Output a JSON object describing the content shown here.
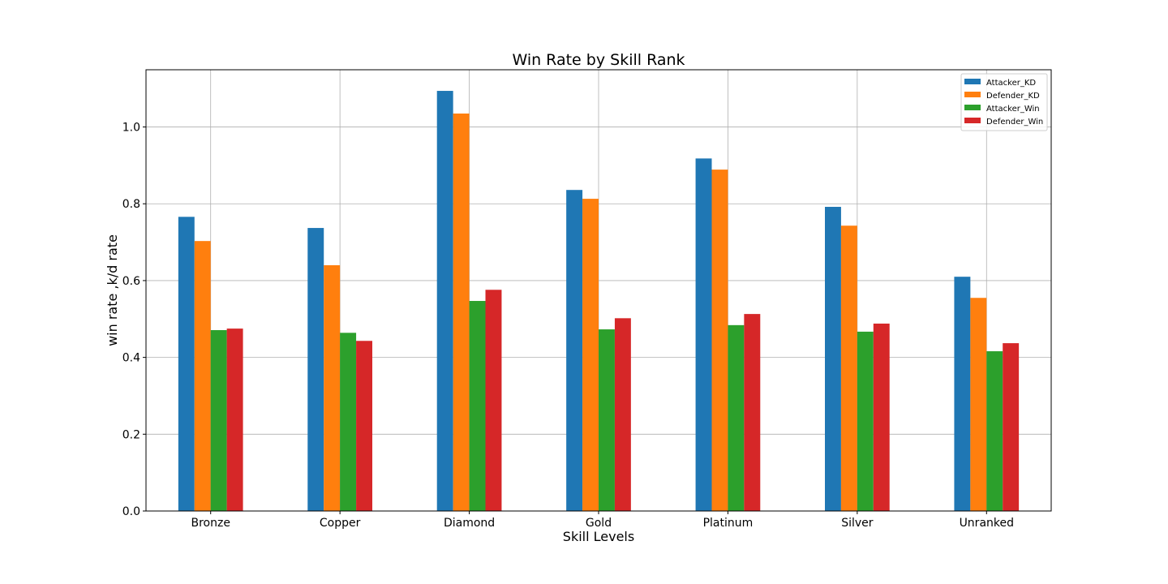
{
  "chart_data": {
    "type": "bar",
    "title": "Win Rate by Skill Rank",
    "xlabel": "Skill Levels",
    "ylabel": "win rate ,k/d rate",
    "categories": [
      "Bronze",
      "Copper",
      "Diamond",
      "Gold",
      "Platinum",
      "Silver",
      "Unranked"
    ],
    "series": [
      {
        "name": "Attacker_KD",
        "color": "#1f77b4",
        "values": [
          0.766,
          0.737,
          1.094,
          0.836,
          0.918,
          0.792,
          0.61
        ]
      },
      {
        "name": "Defender_KD",
        "color": "#ff7f0e",
        "values": [
          0.703,
          0.64,
          1.035,
          0.813,
          0.889,
          0.743,
          0.555
        ]
      },
      {
        "name": "Attacker_Win",
        "color": "#2ca02c",
        "values": [
          0.471,
          0.464,
          0.547,
          0.473,
          0.484,
          0.467,
          0.416
        ]
      },
      {
        "name": "Defender_Win",
        "color": "#d62728",
        "values": [
          0.475,
          0.443,
          0.576,
          0.502,
          0.513,
          0.488,
          0.437
        ]
      }
    ],
    "yticks": [
      "0.0",
      "0.2",
      "0.4",
      "0.6",
      "0.8",
      "1.0"
    ],
    "ylim": [
      0,
      1.149
    ],
    "grid": true,
    "legend_position": "top-right"
  }
}
